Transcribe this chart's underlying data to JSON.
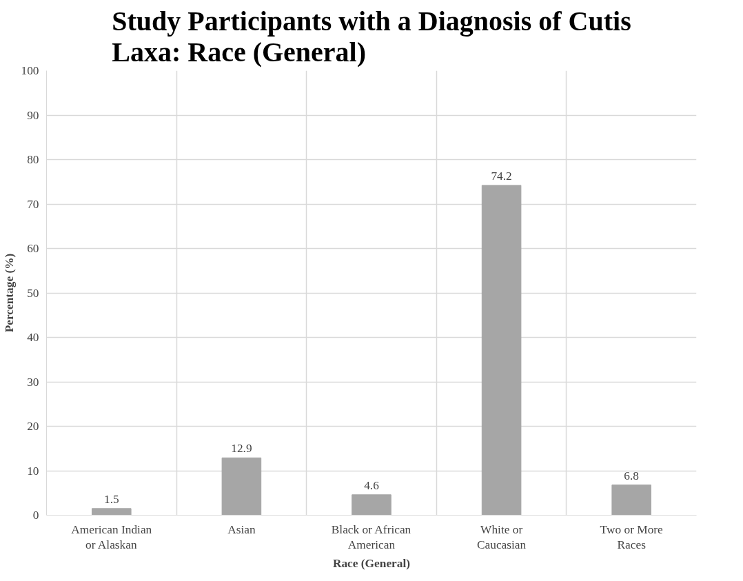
{
  "chart_data": {
    "type": "bar",
    "title": "Study Participants with a Diagnosis of Cutis Laxa: Race (General)",
    "xlabel": "Race (General)",
    "ylabel": "Percentage (%)",
    "categories": [
      "American Indian or Alaskan",
      "Asian",
      "Black or African American",
      "White or Caucasian",
      "Two or More Races"
    ],
    "values": [
      1.5,
      12.9,
      4.6,
      74.2,
      6.8
    ],
    "color": "#a6a6a6",
    "ylim": [
      0,
      100
    ],
    "yticks": [
      0,
      10,
      20,
      30,
      40,
      50,
      60,
      70,
      80,
      90,
      100
    ],
    "grid": true,
    "data_labels": true
  }
}
